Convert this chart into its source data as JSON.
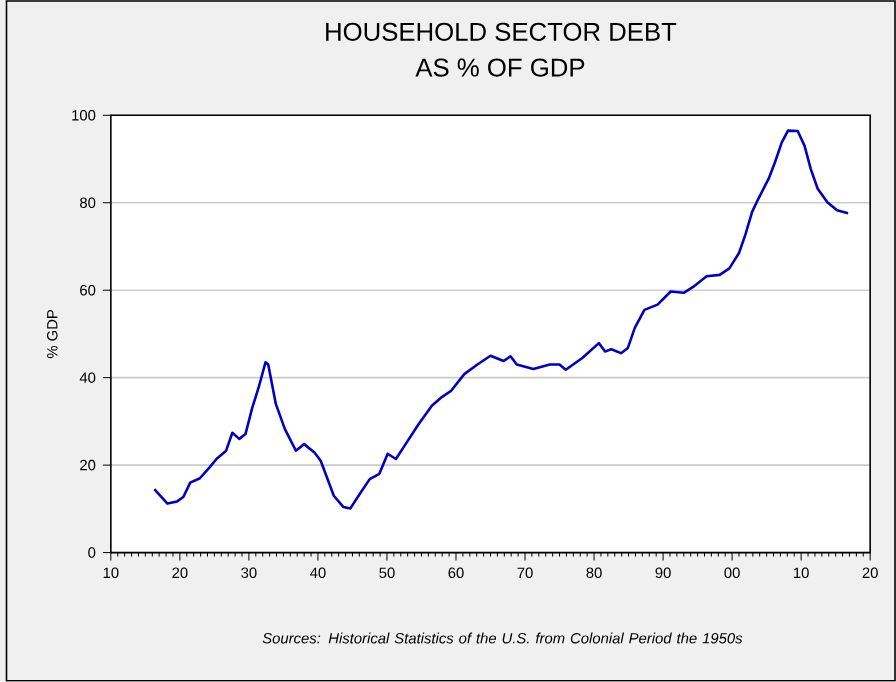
{
  "chart_data": {
    "type": "line",
    "title": "HOUSEHOLD SECTOR DEBT",
    "subtitle": "AS % OF GDP",
    "ylabel": "% GDP",
    "annotations": [
      "Sources: Historical Statistics of the U.S. from Colonial Period the 1950s"
    ],
    "x": [
      1916.3,
      1918.2,
      1919.6,
      1920.5,
      1921.5,
      1922.9,
      1924.3,
      1925.3,
      1926.7,
      1927.6,
      1928.6,
      1929.5,
      1930.5,
      1931.4,
      1932.4,
      1932.8,
      1933.9,
      1935.2,
      1936.8,
      1938.0,
      1939.5,
      1940.4,
      1942.3,
      1943.7,
      1944.7,
      1946.1,
      1947.5,
      1948.9,
      1950.1,
      1951.3,
      1952.7,
      1954.6,
      1956.5,
      1957.9,
      1959.3,
      1961.2,
      1963.1,
      1965.0,
      1966.9,
      1967.9,
      1968.8,
      1971.2,
      1973.6,
      1975.0,
      1975.9,
      1978.3,
      1980.7,
      1981.6,
      1982.5,
      1983.9,
      1984.9,
      1985.9,
      1987.3,
      1989.2,
      1991.1,
      1993.0,
      1994.4,
      1996.3,
      1998.2,
      1999.6,
      2001.0,
      2001.9,
      2002.9,
      2003.8,
      2005.3,
      2006.2,
      2007.2,
      2008.1,
      2009.5,
      2010.5,
      2011.4,
      2012.4,
      2013.8,
      2015.2,
      2016.8
    ],
    "series": [
      {
        "color": "#0000c0",
        "values": [
          14.5,
          11.2,
          11.7,
          12.7,
          16,
          17,
          19.5,
          21.4,
          23.3,
          27.4,
          26,
          27.1,
          33.2,
          37.7,
          43.5,
          43,
          34,
          28.3,
          23.3,
          24.8,
          22.9,
          21,
          13,
          10.4,
          10.1,
          13.5,
          16.8,
          18,
          22.6,
          21.4,
          24.8,
          29.4,
          33.6,
          35.5,
          37,
          40.8,
          43,
          45,
          43.8,
          44.9,
          43,
          42,
          43,
          43,
          41.8,
          44.5,
          47.9,
          46,
          46.5,
          45.6,
          46.8,
          51.4,
          55.5,
          56.7,
          59.7,
          59.4,
          60.8,
          63.2,
          63.5,
          65,
          68.5,
          72.6,
          77.9,
          80.9,
          85.5,
          89.2,
          93.8,
          96.5,
          96.4,
          93,
          87.7,
          83.2,
          80.1,
          78.3,
          77.6
        ]
      }
    ],
    "xlim": [
      1910,
      2020
    ],
    "xticks": [
      {
        "value": 1910,
        "label": "10"
      },
      {
        "value": 1920,
        "label": "20"
      },
      {
        "value": 1930,
        "label": "30"
      },
      {
        "value": 1940,
        "label": "40"
      },
      {
        "value": 1950,
        "label": "50"
      },
      {
        "value": 1960,
        "label": "60"
      },
      {
        "value": 1970,
        "label": "70"
      },
      {
        "value": 1980,
        "label": "80"
      },
      {
        "value": 1990,
        "label": "90"
      },
      {
        "value": 2000,
        "label": "00"
      },
      {
        "value": 2010,
        "label": "10"
      },
      {
        "value": 2020,
        "label": "20"
      }
    ],
    "ylim": [
      0,
      100
    ],
    "yticks": [
      0,
      20,
      40,
      60,
      80,
      100
    ],
    "grid": "y"
  }
}
